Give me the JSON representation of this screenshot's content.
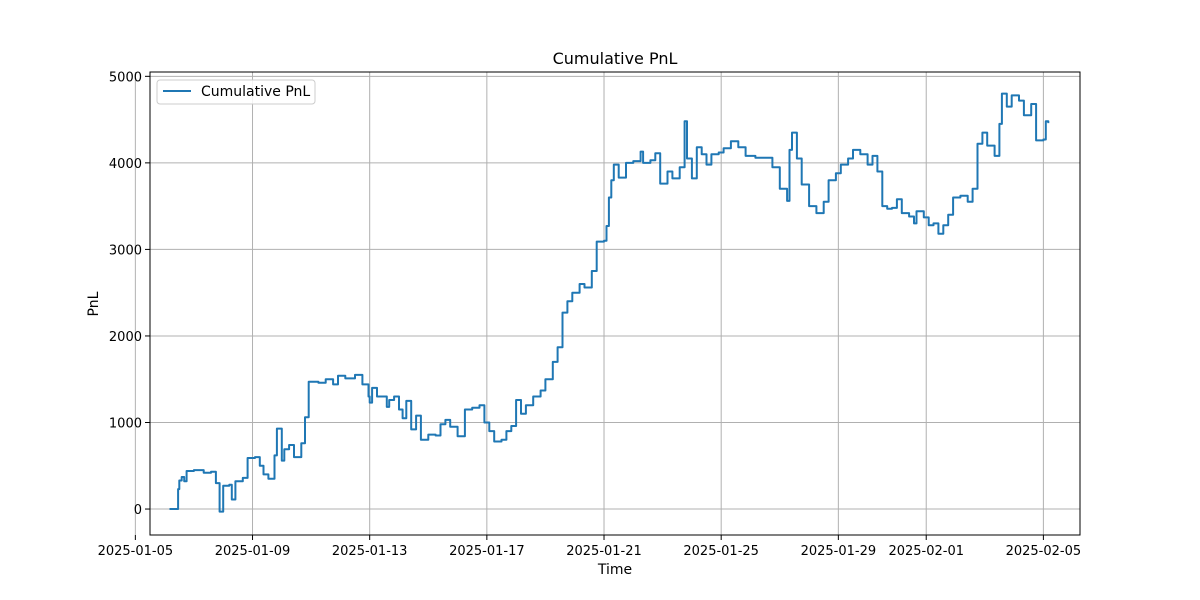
{
  "chart_data": {
    "type": "line",
    "title": "Cumulative PnL",
    "xlabel": "Time",
    "ylabel": "PnL",
    "x_type": "date",
    "xlim": [
      "2025-01-05T12:00",
      "2025-02-06T06:00"
    ],
    "ylim": [
      -300,
      5050
    ],
    "x_ticks": [
      "2025-01-05",
      "2025-01-09",
      "2025-01-13",
      "2025-01-17",
      "2025-01-21",
      "2025-01-25",
      "2025-01-29",
      "2025-02-01",
      "2025-02-05"
    ],
    "x_tick_labels": [
      "2025-01-05",
      "2025-01-09",
      "2025-01-13",
      "2025-01-17",
      "2025-01-21",
      "2025-01-25",
      "2025-01-29",
      "2025-02-01",
      "2025-02-05"
    ],
    "y_ticks": [
      0,
      1000,
      2000,
      3000,
      4000,
      5000
    ],
    "y_tick_labels": [
      "0",
      "1000",
      "2000",
      "3000",
      "4000",
      "5000"
    ],
    "grid": true,
    "legend": {
      "position": "top-left",
      "entries": [
        "Cumulative PnL"
      ]
    },
    "colors": {
      "series": "#1f77b4",
      "grid": "#b0b0b0",
      "axes": "#000000"
    },
    "series": [
      {
        "name": "Cumulative PnL",
        "line_style": "steps",
        "points": [
          [
            "2025-01-06T04:00",
            0
          ],
          [
            "2025-01-06T10:00",
            0
          ],
          [
            "2025-01-06T11:00",
            230
          ],
          [
            "2025-01-06T12:00",
            330
          ],
          [
            "2025-01-06T14:00",
            370
          ],
          [
            "2025-01-06T16:00",
            320
          ],
          [
            "2025-01-06T18:00",
            440
          ],
          [
            "2025-01-07T00:00",
            450
          ],
          [
            "2025-01-07T08:00",
            420
          ],
          [
            "2025-01-07T14:00",
            430
          ],
          [
            "2025-01-07T18:00",
            300
          ],
          [
            "2025-01-07T21:00",
            -30
          ],
          [
            "2025-01-08T00:00",
            270
          ],
          [
            "2025-01-08T05:00",
            280
          ],
          [
            "2025-01-08T07:00",
            110
          ],
          [
            "2025-01-08T10:00",
            320
          ],
          [
            "2025-01-08T16:00",
            360
          ],
          [
            "2025-01-08T20:00",
            590
          ],
          [
            "2025-01-09T02:00",
            600
          ],
          [
            "2025-01-09T06:00",
            500
          ],
          [
            "2025-01-09T09:00",
            400
          ],
          [
            "2025-01-09T13:00",
            350
          ],
          [
            "2025-01-09T18:00",
            620
          ],
          [
            "2025-01-09T20:00",
            930
          ],
          [
            "2025-01-10T00:00",
            560
          ],
          [
            "2025-01-10T02:00",
            690
          ],
          [
            "2025-01-10T06:00",
            740
          ],
          [
            "2025-01-10T10:00",
            600
          ],
          [
            "2025-01-10T16:00",
            760
          ],
          [
            "2025-01-10T19:00",
            1060
          ],
          [
            "2025-01-10T22:00",
            1470
          ],
          [
            "2025-01-11T06:00",
            1460
          ],
          [
            "2025-01-11T12:00",
            1500
          ],
          [
            "2025-01-11T18:00",
            1440
          ],
          [
            "2025-01-11T22:00",
            1540
          ],
          [
            "2025-01-12T04:00",
            1510
          ],
          [
            "2025-01-12T12:00",
            1550
          ],
          [
            "2025-01-12T18:00",
            1440
          ],
          [
            "2025-01-12T23:00",
            1300
          ],
          [
            "2025-01-13T00:00",
            1230
          ],
          [
            "2025-01-13T02:00",
            1400
          ],
          [
            "2025-01-13T06:00",
            1300
          ],
          [
            "2025-01-13T14:00",
            1180
          ],
          [
            "2025-01-13T16:00",
            1260
          ],
          [
            "2025-01-13T20:00",
            1300
          ],
          [
            "2025-01-14T00:00",
            1150
          ],
          [
            "2025-01-14T03:00",
            1050
          ],
          [
            "2025-01-14T06:00",
            1250
          ],
          [
            "2025-01-14T10:00",
            920
          ],
          [
            "2025-01-14T14:00",
            1080
          ],
          [
            "2025-01-14T18:00",
            800
          ],
          [
            "2025-01-15T00:00",
            860
          ],
          [
            "2025-01-15T06:00",
            850
          ],
          [
            "2025-01-15T10:00",
            980
          ],
          [
            "2025-01-15T14:00",
            1030
          ],
          [
            "2025-01-15T18:00",
            950
          ],
          [
            "2025-01-16T00:00",
            840
          ],
          [
            "2025-01-16T06:00",
            1150
          ],
          [
            "2025-01-16T12:00",
            1170
          ],
          [
            "2025-01-16T18:00",
            1200
          ],
          [
            "2025-01-16T22:00",
            1000
          ],
          [
            "2025-01-17T02:00",
            900
          ],
          [
            "2025-01-17T06:00",
            780
          ],
          [
            "2025-01-17T12:00",
            800
          ],
          [
            "2025-01-17T16:00",
            900
          ],
          [
            "2025-01-17T20:00",
            960
          ],
          [
            "2025-01-18T00:00",
            1260
          ],
          [
            "2025-01-18T04:00",
            1100
          ],
          [
            "2025-01-18T08:00",
            1200
          ],
          [
            "2025-01-18T14:00",
            1300
          ],
          [
            "2025-01-18T20:00",
            1370
          ],
          [
            "2025-01-19T00:00",
            1500
          ],
          [
            "2025-01-19T06:00",
            1700
          ],
          [
            "2025-01-19T10:00",
            1870
          ],
          [
            "2025-01-19T14:00",
            2270
          ],
          [
            "2025-01-19T18:00",
            2400
          ],
          [
            "2025-01-19T22:00",
            2500
          ],
          [
            "2025-01-20T04:00",
            2600
          ],
          [
            "2025-01-20T08:00",
            2560
          ],
          [
            "2025-01-20T14:00",
            2750
          ],
          [
            "2025-01-20T18:00",
            3090
          ],
          [
            "2025-01-21T00:00",
            3100
          ],
          [
            "2025-01-21T02:00",
            3270
          ],
          [
            "2025-01-21T04:00",
            3600
          ],
          [
            "2025-01-21T06:00",
            3800
          ],
          [
            "2025-01-21T08:00",
            3980
          ],
          [
            "2025-01-21T12:00",
            3830
          ],
          [
            "2025-01-21T18:00",
            4000
          ],
          [
            "2025-01-22T00:00",
            4020
          ],
          [
            "2025-01-22T06:00",
            4130
          ],
          [
            "2025-01-22T08:00",
            4000
          ],
          [
            "2025-01-22T14:00",
            4030
          ],
          [
            "2025-01-22T18:00",
            4110
          ],
          [
            "2025-01-22T22:00",
            3760
          ],
          [
            "2025-01-23T04:00",
            3900
          ],
          [
            "2025-01-23T08:00",
            3820
          ],
          [
            "2025-01-23T14:00",
            3950
          ],
          [
            "2025-01-23T18:00",
            4480
          ],
          [
            "2025-01-23T20:00",
            4050
          ],
          [
            "2025-01-24T00:00",
            3820
          ],
          [
            "2025-01-24T04:00",
            4180
          ],
          [
            "2025-01-24T08:00",
            4100
          ],
          [
            "2025-01-24T12:00",
            3980
          ],
          [
            "2025-01-24T16:00",
            4100
          ],
          [
            "2025-01-24T22:00",
            4120
          ],
          [
            "2025-01-25T02:00",
            4170
          ],
          [
            "2025-01-25T08:00",
            4250
          ],
          [
            "2025-01-25T14:00",
            4180
          ],
          [
            "2025-01-25T20:00",
            4080
          ],
          [
            "2025-01-26T04:00",
            4060
          ],
          [
            "2025-01-26T10:00",
            4060
          ],
          [
            "2025-01-26T18:00",
            3950
          ],
          [
            "2025-01-27T00:00",
            3700
          ],
          [
            "2025-01-27T06:00",
            3560
          ],
          [
            "2025-01-27T08:00",
            4150
          ],
          [
            "2025-01-27T10:00",
            4350
          ],
          [
            "2025-01-27T14:00",
            4050
          ],
          [
            "2025-01-27T18:00",
            3750
          ],
          [
            "2025-01-28T00:00",
            3500
          ],
          [
            "2025-01-28T06:00",
            3420
          ],
          [
            "2025-01-28T12:00",
            3550
          ],
          [
            "2025-01-28T16:00",
            3800
          ],
          [
            "2025-01-28T22:00",
            3880
          ],
          [
            "2025-01-29T02:00",
            3980
          ],
          [
            "2025-01-29T08:00",
            4050
          ],
          [
            "2025-01-29T12:00",
            4150
          ],
          [
            "2025-01-29T18:00",
            4100
          ],
          [
            "2025-01-30T00:00",
            3980
          ],
          [
            "2025-01-30T04:00",
            4080
          ],
          [
            "2025-01-30T08:00",
            3900
          ],
          [
            "2025-01-30T12:00",
            3500
          ],
          [
            "2025-01-30T16:00",
            3470
          ],
          [
            "2025-01-30T20:00",
            3480
          ],
          [
            "2025-01-31T00:00",
            3580
          ],
          [
            "2025-01-31T04:00",
            3420
          ],
          [
            "2025-01-31T10:00",
            3380
          ],
          [
            "2025-01-31T14:00",
            3300
          ],
          [
            "2025-01-31T16:00",
            3440
          ],
          [
            "2025-01-31T22:00",
            3370
          ],
          [
            "2025-02-01T02:00",
            3280
          ],
          [
            "2025-02-01T06:00",
            3300
          ],
          [
            "2025-02-01T10:00",
            3180
          ],
          [
            "2025-02-01T14:00",
            3280
          ],
          [
            "2025-02-01T18:00",
            3400
          ],
          [
            "2025-02-01T22:00",
            3600
          ],
          [
            "2025-02-02T04:00",
            3620
          ],
          [
            "2025-02-02T10:00",
            3550
          ],
          [
            "2025-02-02T14:00",
            3700
          ],
          [
            "2025-02-02T18:00",
            4220
          ],
          [
            "2025-02-02T22:00",
            4350
          ],
          [
            "2025-02-03T02:00",
            4200
          ],
          [
            "2025-02-03T08:00",
            4080
          ],
          [
            "2025-02-03T12:00",
            4450
          ],
          [
            "2025-02-03T14:00",
            4800
          ],
          [
            "2025-02-03T18:00",
            4650
          ],
          [
            "2025-02-03T22:00",
            4780
          ],
          [
            "2025-02-04T04:00",
            4720
          ],
          [
            "2025-02-04T08:00",
            4550
          ],
          [
            "2025-02-04T14:00",
            4680
          ],
          [
            "2025-02-04T18:00",
            4260
          ],
          [
            "2025-02-05T00:00",
            4270
          ],
          [
            "2025-02-05T02:00",
            4480
          ],
          [
            "2025-02-05T04:00",
            4460
          ]
        ]
      }
    ]
  }
}
